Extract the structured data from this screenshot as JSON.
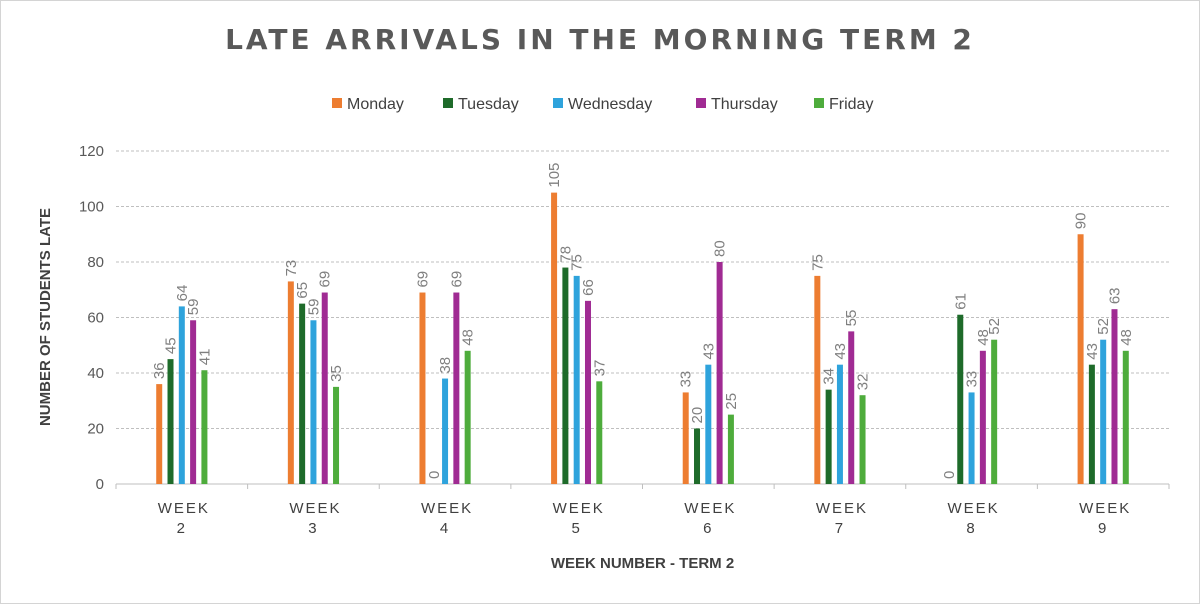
{
  "chart_data": {
    "type": "bar",
    "title": "LATE ARRIVALS IN THE MORNING TERM 2",
    "xlabel": "WEEK NUMBER - TERM 2",
    "ylabel": "NUMBER OF STUDENTS LATE",
    "categories": [
      [
        "WEEK",
        "2"
      ],
      [
        "WEEK",
        "3"
      ],
      [
        "WEEK",
        "4"
      ],
      [
        "WEEK",
        "5"
      ],
      [
        "WEEK",
        "6"
      ],
      [
        "WEEK",
        "7"
      ],
      [
        "WEEK",
        "8"
      ],
      [
        "WEEK",
        "9"
      ]
    ],
    "series": [
      {
        "name": "Monday",
        "color": "#ed7d31",
        "values": [
          36,
          73,
          69,
          105,
          33,
          75,
          0,
          90
        ],
        "labels": [
          "36",
          "73",
          "69",
          "105",
          "33",
          "75",
          "0",
          "90"
        ]
      },
      {
        "name": "Tuesday",
        "color": "#1e6b2a",
        "values": [
          45,
          65,
          0,
          78,
          20,
          34,
          61,
          43
        ],
        "labels": [
          "45",
          "65",
          "0",
          "78",
          "20",
          "34",
          "61",
          "43"
        ]
      },
      {
        "name": "Wednesday",
        "color": "#2ea3dc",
        "values": [
          64,
          59,
          38,
          75,
          43,
          43,
          33,
          52
        ],
        "labels": [
          "64",
          "59",
          "38",
          "75",
          "43",
          "43",
          "33",
          "52"
        ]
      },
      {
        "name": "Thursday",
        "color": "#a02b93",
        "values": [
          59,
          69,
          69,
          66,
          80,
          55,
          48,
          63
        ],
        "labels": [
          "59",
          "69",
          "69",
          "66",
          "80",
          "55",
          "48",
          "63"
        ]
      },
      {
        "name": "Friday",
        "color": "#4eac3c",
        "values": [
          41,
          35,
          48,
          37,
          25,
          32,
          52,
          48
        ],
        "labels": [
          "41",
          "35",
          "48",
          "37",
          "25",
          "32",
          "52",
          "48"
        ]
      }
    ],
    "ylim": [
      0,
      120
    ],
    "yticks": [
      0,
      20,
      40,
      60,
      80,
      100,
      120
    ],
    "grid": true,
    "legend_position": "top"
  }
}
